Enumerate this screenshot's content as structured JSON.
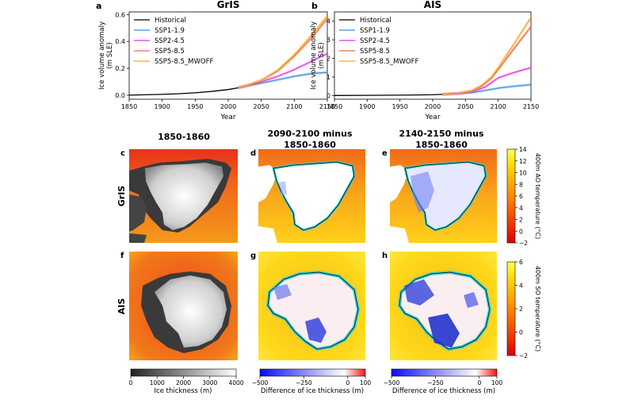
{
  "chart_data": [
    {
      "type": "line",
      "panel": "a",
      "title": "GrIS",
      "xlabel": "Year",
      "ylabel": "Ice volume anomaly",
      "ylabel_unit": "(m SLE)",
      "xlim": [
        1850,
        2150
      ],
      "ylim": [
        -0.03,
        0.62
      ],
      "xticks": [
        1850,
        1900,
        1950,
        2000,
        2050,
        2100,
        2150
      ],
      "yticks": [
        0.0,
        0.2,
        0.4,
        0.6
      ],
      "ytick_labels": [
        "0.0",
        "0.2",
        "0.4",
        "0.6"
      ],
      "legend_position": "top-left",
      "series": [
        {
          "name": "Historical",
          "color": "#000000",
          "x": [
            1850,
            1875,
            1900,
            1925,
            1950,
            1975,
            2000,
            2015
          ],
          "y": [
            0.0,
            0.003,
            0.006,
            0.011,
            0.018,
            0.028,
            0.042,
            0.055
          ]
        },
        {
          "name": "SSP1-1.9",
          "color": "#3d8fe0",
          "x": [
            2015,
            2030,
            2050,
            2075,
            2100,
            2125,
            2150
          ],
          "y": [
            0.055,
            0.07,
            0.09,
            0.115,
            0.14,
            0.16,
            0.17
          ]
        },
        {
          "name": "SSP2-4.5",
          "color": "#e632e6",
          "x": [
            2015,
            2030,
            2050,
            2075,
            2100,
            2125,
            2150
          ],
          "y": [
            0.055,
            0.072,
            0.1,
            0.14,
            0.19,
            0.25,
            0.31
          ]
        },
        {
          "name": "SSP5-8.5",
          "color": "#f06b4a",
          "x": [
            2015,
            2030,
            2050,
            2075,
            2100,
            2125,
            2150
          ],
          "y": [
            0.055,
            0.075,
            0.11,
            0.18,
            0.29,
            0.42,
            0.57
          ]
        },
        {
          "name": "SSP5-8.5_MWOFF",
          "color": "#f5a623",
          "x": [
            2015,
            2030,
            2050,
            2075,
            2100,
            2125,
            2150
          ],
          "y": [
            0.055,
            0.075,
            0.11,
            0.185,
            0.3,
            0.44,
            0.59
          ]
        }
      ]
    },
    {
      "type": "line",
      "panel": "b",
      "title": "AIS",
      "xlabel": "Year",
      "ylabel": "Ice volume anomaly",
      "ylabel_unit": "(m SLE)",
      "xlim": [
        1850,
        2150
      ],
      "ylim": [
        -0.2,
        4.5
      ],
      "xticks": [
        1850,
        1900,
        1950,
        2000,
        2050,
        2100,
        2150
      ],
      "yticks": [
        0,
        1,
        2,
        3,
        4
      ],
      "ytick_labels": [
        "0",
        "1",
        "2",
        "3",
        "4"
      ],
      "legend_position": "top-left",
      "series": [
        {
          "name": "Historical",
          "color": "#000000",
          "x": [
            1850,
            1900,
            1950,
            2000,
            2015
          ],
          "y": [
            0.0,
            0.01,
            0.02,
            0.04,
            0.06
          ]
        },
        {
          "name": "SSP1-1.9",
          "color": "#3d8fe0",
          "x": [
            2015,
            2040,
            2060,
            2080,
            2100,
            2125,
            2150
          ],
          "y": [
            0.06,
            0.1,
            0.16,
            0.27,
            0.4,
            0.5,
            0.58
          ]
        },
        {
          "name": "SSP2-4.5",
          "color": "#e632e6",
          "x": [
            2015,
            2040,
            2060,
            2080,
            2100,
            2125,
            2150
          ],
          "y": [
            0.06,
            0.11,
            0.2,
            0.45,
            0.95,
            1.25,
            1.5
          ]
        },
        {
          "name": "SSP5-8.5",
          "color": "#f06b4a",
          "x": [
            2015,
            2040,
            2060,
            2075,
            2090,
            2100,
            2115,
            2130,
            2150
          ],
          "y": [
            0.06,
            0.12,
            0.25,
            0.5,
            0.95,
            1.4,
            2.1,
            2.8,
            3.7
          ]
        },
        {
          "name": "SSP5-8.5_MWOFF",
          "color": "#f5a623",
          "x": [
            2015,
            2040,
            2060,
            2075,
            2090,
            2100,
            2115,
            2130,
            2150
          ],
          "y": [
            0.06,
            0.12,
            0.26,
            0.55,
            1.0,
            1.5,
            2.3,
            3.1,
            4.2
          ]
        }
      ]
    },
    {
      "type": "heatmap",
      "layout": "map-grid",
      "column_titles": [
        [
          "1850-1860"
        ],
        [
          "2090-2100 minus",
          "1850-1860"
        ],
        [
          "2140-2150 minus",
          "1850-1860"
        ]
      ],
      "row_labels": [
        "GrIS",
        "AIS"
      ],
      "panel_letters": [
        "c",
        "d",
        "e",
        "f",
        "g",
        "h"
      ],
      "colorbars": {
        "ao_temperature": {
          "label": "400m AO temperature (°C)",
          "range": [
            -2,
            14
          ],
          "ticks": [
            "−2",
            "0",
            "2",
            "4",
            "6",
            "8",
            "10",
            "12",
            "14"
          ]
        },
        "so_temperature": {
          "label": "400m SO temperature (°C)",
          "range": [
            -2,
            6
          ],
          "ticks": [
            "−2",
            "0",
            "2",
            "4",
            "6"
          ]
        },
        "ice_thickness": {
          "label": "Ice thickness (m)",
          "range": [
            0,
            4000
          ],
          "ticks": [
            "0",
            "1000",
            "2000",
            "3000",
            "4000"
          ]
        },
        "ice_thickness_difference": {
          "label": "Difference of ice thickness (m)",
          "range": [
            -500,
            100
          ],
          "ticks": [
            "−500",
            "−250",
            "0",
            "100"
          ]
        }
      }
    }
  ],
  "colors": {
    "ocean_warm": "#f25a1a",
    "ocean_hot": "#ffd11a",
    "ice_white": "#ffffff",
    "ice_loss": "#3344dd",
    "grounding_line": "#40d0d0"
  }
}
